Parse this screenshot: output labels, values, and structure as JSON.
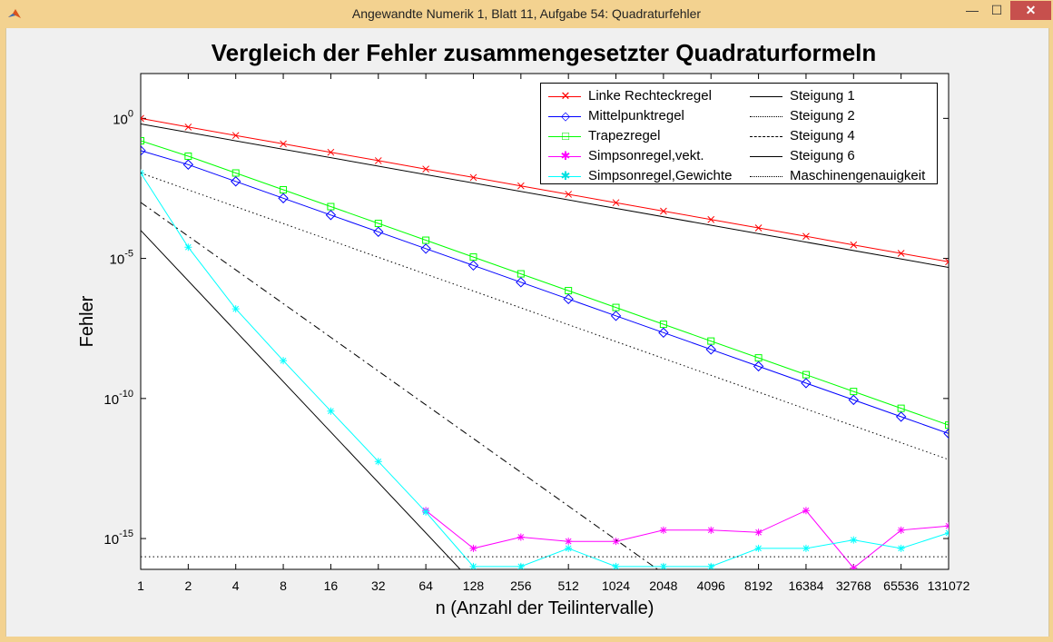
{
  "window": {
    "title": "Angewandte Numerik 1, Blatt 11, Aufgabe 54: Quadraturfehler",
    "min_symbol": "—",
    "max_symbol": "☐",
    "close_symbol": "✕"
  },
  "chart_data": {
    "type": "line",
    "title": "Vergleich der Fehler zusammengesetzter Quadraturformeln",
    "xlabel": "n (Anzahl der Teilintervalle)",
    "ylabel": "Fehler",
    "x_scale": "log2",
    "y_scale": "log10",
    "xlim": [
      1,
      131072
    ],
    "ylim_exponent": [
      -16.1,
      1.6
    ],
    "x_ticks": [
      "1",
      "2",
      "4",
      "8",
      "16",
      "32",
      "64",
      "128",
      "256",
      "512",
      "1024",
      "2048",
      "4096",
      "8192",
      "16384",
      "32768",
      "65536",
      "131072"
    ],
    "y_ticks": [
      {
        "base": "10",
        "exp": "0"
      },
      {
        "base": "10",
        "exp": "-5"
      },
      {
        "base": "10",
        "exp": "-10"
      },
      {
        "base": "10",
        "exp": "-15"
      }
    ],
    "legend_position": "top-right",
    "colors": {
      "red": "#ff0000",
      "blue": "#0000ff",
      "green": "#00ff00",
      "magenta": "#ff00ff",
      "cyan": "#00ffff",
      "black": "#000000"
    },
    "series": [
      {
        "name": "Linke Rechteckregel",
        "color": "#ff0000",
        "marker": "x",
        "dash": "solid",
        "x": [
          1,
          2,
          4,
          8,
          16,
          32,
          64,
          128,
          256,
          512,
          1024,
          2048,
          4096,
          8192,
          16384,
          32768,
          65536,
          131072
        ],
        "y_exp": [
          0.0,
          -0.31,
          -0.61,
          -0.91,
          -1.21,
          -1.51,
          -1.81,
          -2.11,
          -2.41,
          -2.71,
          -3.01,
          -3.31,
          -3.61,
          -3.91,
          -4.21,
          -4.52,
          -4.82,
          -5.12
        ]
      },
      {
        "name": "Mittelpunktregel",
        "color": "#0000ff",
        "marker": "diamond",
        "dash": "solid",
        "x": [
          1,
          2,
          4,
          8,
          16,
          32,
          64,
          128,
          256,
          512,
          1024,
          2048,
          4096,
          8192,
          16384,
          32768,
          65536,
          131072
        ],
        "y_exp": [
          -1.15,
          -1.65,
          -2.25,
          -2.85,
          -3.45,
          -4.05,
          -4.65,
          -5.25,
          -5.85,
          -6.45,
          -7.05,
          -7.65,
          -8.25,
          -8.85,
          -9.45,
          -10.05,
          -10.65,
          -11.25
        ]
      },
      {
        "name": "Trapezregel",
        "color": "#00ff00",
        "marker": "square",
        "dash": "solid",
        "x": [
          1,
          2,
          4,
          8,
          16,
          32,
          64,
          128,
          256,
          512,
          1024,
          2048,
          4096,
          8192,
          16384,
          32768,
          65536,
          131072
        ],
        "y_exp": [
          -0.8,
          -1.35,
          -1.95,
          -2.55,
          -3.15,
          -3.75,
          -4.35,
          -4.95,
          -5.55,
          -6.15,
          -6.75,
          -7.35,
          -7.95,
          -8.55,
          -9.15,
          -9.75,
          -10.35,
          -10.95
        ]
      },
      {
        "name": "Simpsonregel,vekt.",
        "color": "#ff00ff",
        "marker": "star",
        "dash": "solid",
        "x": [
          64,
          128,
          256,
          512,
          1024,
          2048,
          4096,
          8192,
          16384,
          32768,
          65536,
          131072
        ],
        "y_exp": [
          -14.0,
          -15.35,
          -14.95,
          -15.1,
          -15.1,
          -14.7,
          -14.7,
          -14.78,
          -14.0,
          -16.05,
          -14.7,
          -14.55
        ]
      },
      {
        "name": "Simpsonregel,Gewichte",
        "color": "#00ffff",
        "marker": "star",
        "dash": "solid",
        "x": [
          1,
          2,
          4,
          8,
          16,
          32,
          64,
          128,
          256,
          512,
          1024,
          2048,
          4096,
          8192,
          16384,
          32768,
          65536,
          131072
        ],
        "y_exp": [
          -1.95,
          -4.6,
          -6.8,
          -8.65,
          -10.45,
          -12.25,
          -14.05,
          -16.0,
          -16.0,
          -15.35,
          -16.0,
          -16.0,
          -16.0,
          -15.35,
          -15.35,
          -15.05,
          -15.35,
          -14.8
        ]
      },
      {
        "name": "Steigung 1",
        "color": "#000000",
        "dash": "solid",
        "x": [
          1,
          131072
        ],
        "y_exp": [
          -0.2,
          -5.32
        ]
      },
      {
        "name": "Steigung 2",
        "color": "#000000",
        "dash": "dotted",
        "x": [
          1,
          131072
        ],
        "y_exp": [
          -1.95,
          -12.18
        ]
      },
      {
        "name": "Steigung 4",
        "color": "#000000",
        "dash": "dashdot",
        "x": [
          1,
          2048
        ],
        "y_exp": [
          -3.0,
          -16.25
        ]
      },
      {
        "name": "Steigung 6",
        "color": "#000000",
        "dash": "solid",
        "x": [
          1,
          128
        ],
        "y_exp": [
          -4.0,
          -16.6
        ]
      },
      {
        "name": "Maschinengenauigkeit",
        "color": "#000000",
        "dash": "dotted",
        "x": [
          1,
          131072
        ],
        "y_exp": [
          -15.65,
          -15.65
        ]
      }
    ]
  }
}
